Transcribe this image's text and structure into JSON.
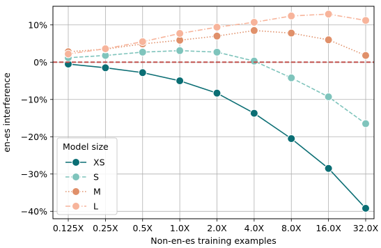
{
  "chart_data": {
    "type": "line",
    "xlabel": "Non-en-es training examples",
    "ylabel": "en-es interference",
    "categories": [
      "0.125X",
      "0.25X",
      "0.5X",
      "1.0X",
      "2.0X",
      "4.0X",
      "8.0X",
      "16.0X",
      "32.0X"
    ],
    "ylim": [
      -42,
      15
    ],
    "yticks": [
      -40,
      -30,
      -20,
      -10,
      0,
      10
    ],
    "ytick_labels": [
      "−40%",
      "−30%",
      "−20%",
      "−10%",
      "0%",
      "10%"
    ],
    "grid": true,
    "reference_line": {
      "y": 0,
      "color": "#c0504d",
      "style": "dashed"
    },
    "legend": {
      "title": "Model size",
      "position": "bottom-left"
    },
    "series": [
      {
        "name": "XS",
        "color": "#0b6e74",
        "style": "solid",
        "values": [
          -0.5,
          -1.5,
          -2.8,
          -5.0,
          -8.3,
          -13.7,
          -20.5,
          -28.5,
          -39.2
        ]
      },
      {
        "name": "S",
        "color": "#7fc4bc",
        "style": "dashed",
        "values": [
          1.2,
          1.8,
          2.7,
          3.1,
          2.7,
          0.3,
          -4.2,
          -9.3,
          -16.5
        ]
      },
      {
        "name": "M",
        "color": "#e0906a",
        "style": "dotted",
        "values": [
          2.8,
          3.5,
          4.9,
          5.9,
          7.0,
          8.5,
          7.8,
          6.0,
          1.8
        ]
      },
      {
        "name": "L",
        "color": "#f7b49b",
        "style": "dashdot",
        "values": [
          2.2,
          3.6,
          5.5,
          7.7,
          9.4,
          10.7,
          12.4,
          12.9,
          11.2
        ]
      }
    ]
  }
}
